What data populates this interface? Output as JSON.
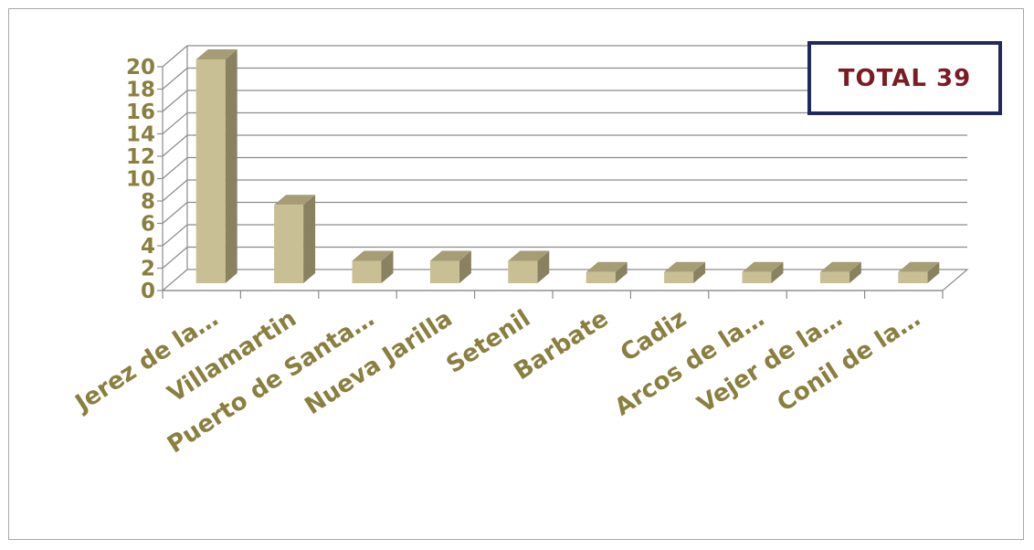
{
  "colors": {
    "bar_front": "#c8bf95",
    "bar_side": "#8a8160",
    "bar_top": "#a69d76",
    "grid": "#8c8c8c",
    "tick_text": "#8b7f40",
    "total_text": "#7a1c24",
    "total_border": "#1f2a5c"
  },
  "annotation": {
    "total_label": "TOTAL 39"
  },
  "chart_data": {
    "type": "bar",
    "title": "",
    "xlabel": "",
    "ylabel": "",
    "categories": [
      "Jerez de la…",
      "Villamartin",
      "Puerto de Santa…",
      "Nueva Jarilla",
      "Setenil",
      "Barbate",
      "Cadiz",
      "Arcos de la…",
      "Vejer de la…",
      "Conil de la…"
    ],
    "values": [
      20,
      7,
      2,
      2,
      2,
      1,
      1,
      1,
      1,
      1
    ],
    "ylim": [
      0,
      20
    ],
    "yticks": [
      0,
      2,
      4,
      6,
      8,
      10,
      12,
      14,
      16,
      18,
      20
    ],
    "grid": true,
    "three_d": true
  }
}
